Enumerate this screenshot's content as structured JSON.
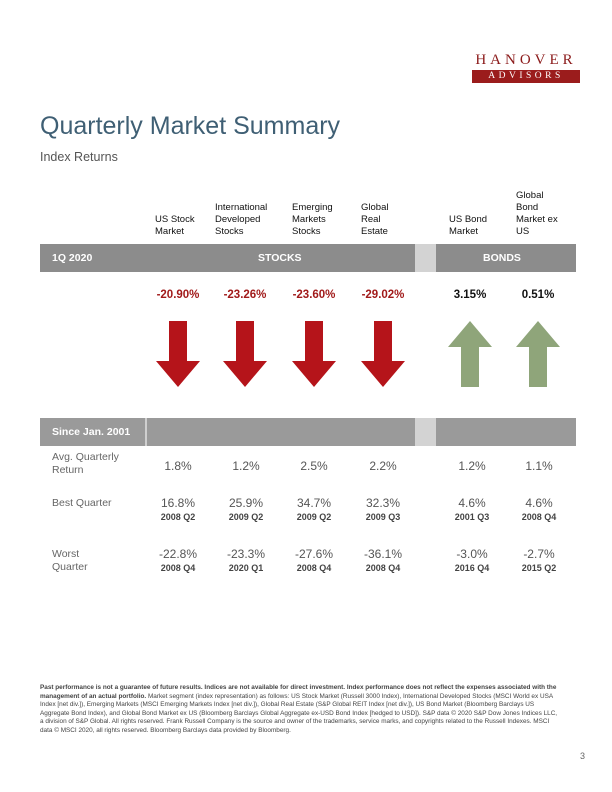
{
  "logo": {
    "top": "HANOVER",
    "bottom": "ADVISORS"
  },
  "title": "Quarterly Market Summary",
  "subtitle": "Index Returns",
  "columns": [
    {
      "header": "US Stock Market",
      "group": "stocks"
    },
    {
      "header": "International Developed Stocks",
      "group": "stocks"
    },
    {
      "header": "Emerging Markets Stocks",
      "group": "stocks"
    },
    {
      "header": "Global Real Estate",
      "group": "stocks"
    },
    {
      "header": "US Bond Market",
      "group": "bonds"
    },
    {
      "header": "Global Bond Market ex US",
      "group": "bonds"
    }
  ],
  "quarter_band": {
    "period": "1Q 2020",
    "stocks_label": "STOCKS",
    "bonds_label": "BONDS"
  },
  "quarter_returns": [
    "-20.90%",
    "-23.26%",
    "-23.60%",
    "-29.02%",
    "3.15%",
    "0.51%"
  ],
  "arrows": [
    "down",
    "down",
    "down",
    "down",
    "up",
    "up"
  ],
  "colors": {
    "negative": "#a11a1a",
    "down_arrow": "#b5141a",
    "up_arrow": "#8fa57a",
    "band": "#8c8c8c",
    "title": "#3f5f74"
  },
  "since_band": {
    "label": "Since Jan. 2001"
  },
  "stats": {
    "avg_label": "Avg. Quarterly Return",
    "avg": [
      "1.8%",
      "1.2%",
      "2.5%",
      "2.2%",
      "1.2%",
      "1.1%"
    ],
    "best_label": "Best Quarter",
    "best": [
      {
        "value": "16.8%",
        "quarter": "2008 Q2"
      },
      {
        "value": "25.9%",
        "quarter": "2009 Q2"
      },
      {
        "value": "34.7%",
        "quarter": "2009 Q2"
      },
      {
        "value": "32.3%",
        "quarter": "2009 Q3"
      },
      {
        "value": "4.6%",
        "quarter": "2001 Q3"
      },
      {
        "value": "4.6%",
        "quarter": "2008 Q4"
      }
    ],
    "worst_label": "Worst Quarter",
    "worst": [
      {
        "value": "-22.8%",
        "quarter": "2008 Q4"
      },
      {
        "value": "-23.3%",
        "quarter": "2020 Q1"
      },
      {
        "value": "-27.6%",
        "quarter": "2008 Q4"
      },
      {
        "value": "-36.1%",
        "quarter": "2008 Q4"
      },
      {
        "value": "-3.0%",
        "quarter": "2016 Q4"
      },
      {
        "value": "-2.7%",
        "quarter": "2015 Q2"
      }
    ]
  },
  "footnote": {
    "bold": "Past performance is not a guarantee of future results. Indices are not available for direct investment. Index performance does not reflect the expenses associated with the management of an actual portfolio.",
    "text": " Market segment (index representation) as follows: US Stock Market (Russell 3000 Index), International Developed Stocks (MSCI World ex USA Index [net div.]), Emerging Markets (MSCI Emerging Markets Index [net div.]), Global Real Estate (S&P Global REIT Index [net div.]), US Bond Market (Bloomberg Barclays US Aggregate Bond Index), and Global Bond Market ex US (Bloomberg Barclays Global Aggregate ex-USD Bond Index [hedged to USD]). S&P data © 2020 S&P Dow Jones Indices LLC, a division of S&P Global. All rights reserved. Frank Russell Company is the source and owner of the trademarks, service marks, and copyrights related to the Russell Indexes. MSCI data © MSCI 2020, all rights reserved. Bloomberg Barclays data provided by Bloomberg."
  },
  "page_number": "3"
}
